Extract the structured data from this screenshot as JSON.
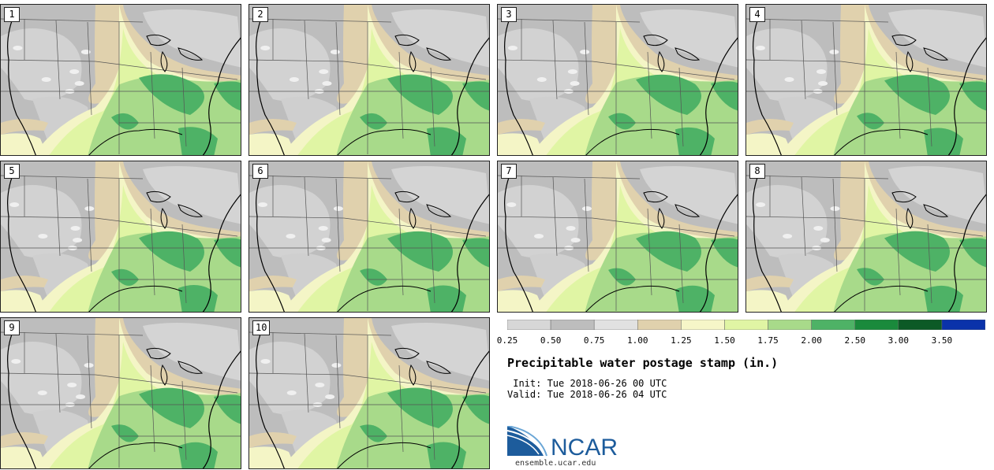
{
  "title": "Precipitable water postage stamp (in.)",
  "init_line": " Init: Tue 2018-06-26 00 UTC",
  "valid_line": "Valid: Tue 2018-06-26 04 UTC",
  "stamps": [
    "1",
    "2",
    "3",
    "4",
    "5",
    "6",
    "7",
    "8",
    "9",
    "10"
  ],
  "colorbar": {
    "labels": [
      "0.25",
      "0.50",
      "0.75",
      "1.00",
      "1.25",
      "1.50",
      "1.75",
      "2.00",
      "2.50",
      "3.00",
      "3.50"
    ],
    "colors": [
      "#d7d7d7",
      "#bdbdbd",
      "#e1e1e1",
      "#e0d1ad",
      "#f6f6c8",
      "#e0f5a4",
      "#a8da8a",
      "#4eb266",
      "#1a8a3c",
      "#0c5a26",
      "#0a32aa"
    ]
  },
  "logo": {
    "text": "NCAR",
    "url": "ensemble.ucar.edu",
    "brand_color": "#1d5c9c"
  }
}
